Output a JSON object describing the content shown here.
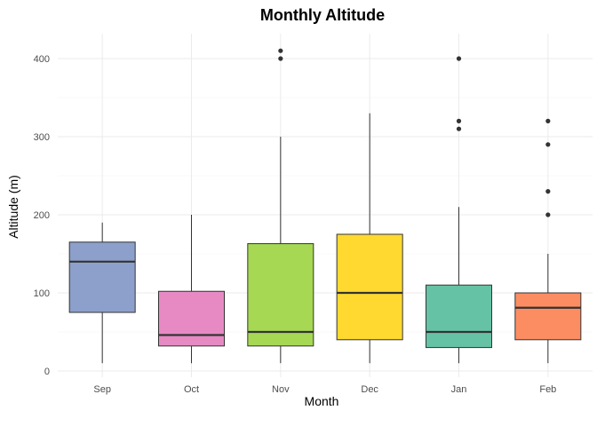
{
  "chart_data": {
    "type": "boxplot",
    "title": "Monthly Altitude",
    "xlabel": "Month",
    "ylabel": "Altitude (m)",
    "ylim": [
      0,
      430
    ],
    "yticks": [
      0,
      100,
      200,
      300,
      400
    ],
    "grid": true,
    "categories": [
      "Sep",
      "Oct",
      "Nov",
      "Dec",
      "Jan",
      "Feb"
    ],
    "boxes": [
      {
        "category": "Sep",
        "min": 10,
        "q1": 75,
        "median": 140,
        "q3": 165,
        "max": 190,
        "outliers": [],
        "color": "#8DA0CB"
      },
      {
        "category": "Oct",
        "min": 10,
        "q1": 32,
        "median": 46,
        "q3": 102,
        "max": 200,
        "outliers": [],
        "color": "#E78AC3"
      },
      {
        "category": "Nov",
        "min": 10,
        "q1": 32,
        "median": 50,
        "q3": 163,
        "max": 300,
        "outliers": [
          400,
          410
        ],
        "color": "#A6D854"
      },
      {
        "category": "Dec",
        "min": 10,
        "q1": 40,
        "median": 100,
        "q3": 175,
        "max": 330,
        "outliers": [],
        "color": "#FFD92F"
      },
      {
        "category": "Jan",
        "min": 10,
        "q1": 30,
        "median": 50,
        "q3": 110,
        "max": 210,
        "outliers": [
          310,
          320,
          400
        ],
        "color": "#66C2A5"
      },
      {
        "category": "Feb",
        "min": 10,
        "q1": 40,
        "median": 81,
        "q3": 100,
        "max": 150,
        "outliers": [
          200,
          230,
          290,
          320
        ],
        "color": "#FC8D62"
      }
    ]
  }
}
